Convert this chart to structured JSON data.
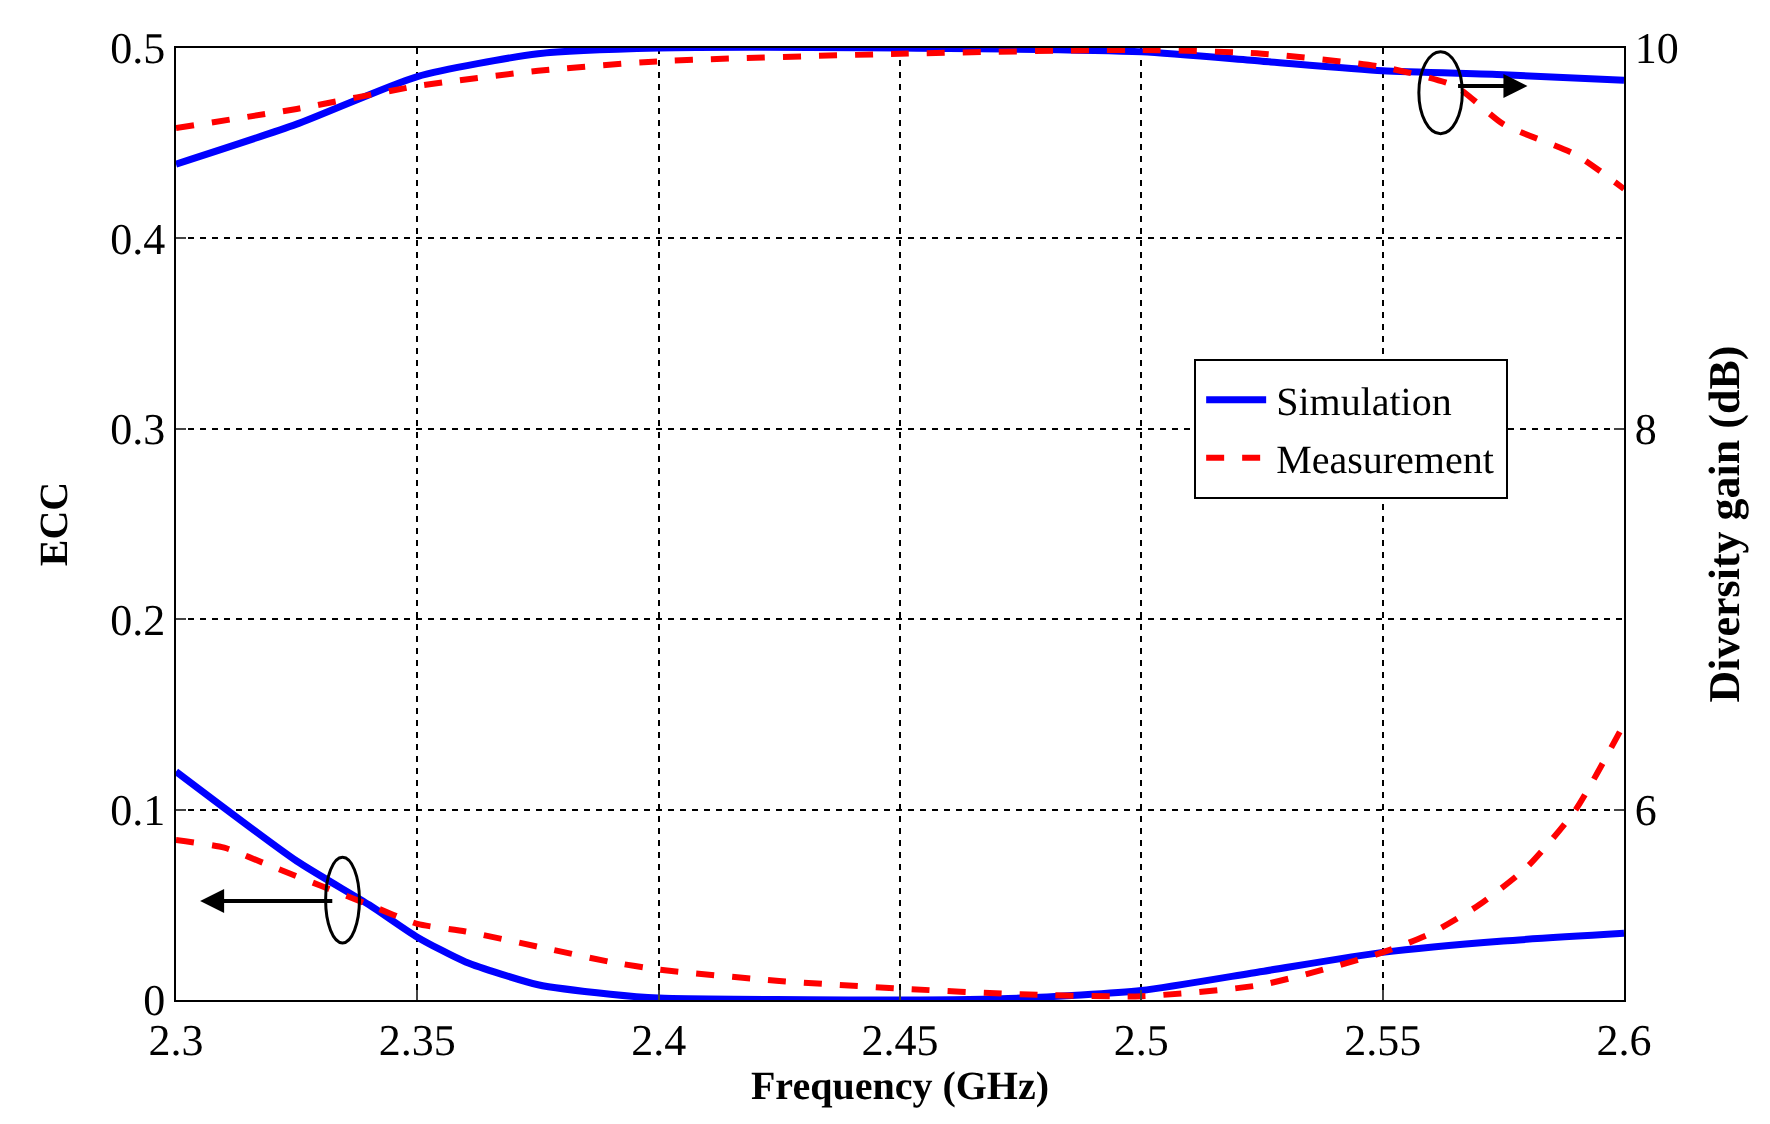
{
  "chart_data": {
    "type": "line",
    "xlabel": "Frequency (GHz)",
    "ylabel": "ECC",
    "y2label": "Diversity gain (dB)",
    "xlim": [
      2.3,
      2.6
    ],
    "xticks": [
      2.3,
      2.35,
      2.4,
      2.45,
      2.5,
      2.55,
      2.6
    ],
    "ylim": [
      0,
      0.5
    ],
    "yticks": [
      0,
      0.1,
      0.2,
      0.3,
      0.4,
      0.5
    ],
    "y2lim": [
      5,
      10
    ],
    "y2ticks": [
      6,
      8,
      10
    ],
    "grid": true,
    "legend": "right",
    "marker": "none",
    "series": [
      {
        "name": "Simulation",
        "color": "#0000ff",
        "line_style": "solid",
        "x": [
          2.3,
          2.325,
          2.34,
          2.35,
          2.36,
          2.375,
          2.39,
          2.4,
          2.45,
          2.475,
          2.5,
          2.525,
          2.55,
          2.575,
          2.6
        ],
        "values": [
          0.12,
          0.073,
          0.05,
          0.033,
          0.02,
          0.008,
          0.003,
          0.001,
          0,
          0.001,
          0.005,
          0.015,
          0.025,
          0.031,
          0.035
        ]
      },
      {
        "name": "Measurement",
        "color": "#ff0000",
        "line_style": "dashed",
        "x": [
          2.3,
          2.31,
          2.32,
          2.33,
          2.34,
          2.35,
          2.36,
          2.375,
          2.39,
          2.4,
          2.425,
          2.45,
          2.475,
          2.5,
          2.525,
          2.55,
          2.56,
          2.57,
          2.58,
          2.59,
          2.6
        ],
        "values": [
          0.084,
          0.08,
          0.07,
          0.06,
          0.05,
          0.04,
          0.036,
          0.028,
          0.02,
          0.016,
          0.01,
          0.006,
          0.003,
          0.002,
          0.008,
          0.025,
          0.035,
          0.05,
          0.07,
          0.1,
          0.145
        ]
      },
      {
        "color": "#0000ff",
        "line_style": "solid",
        "axis": "y2",
        "x": [
          2.3,
          2.325,
          2.35,
          2.375,
          2.4,
          2.45,
          2.5,
          2.525,
          2.55,
          2.575,
          2.6
        ],
        "values": [
          9.39,
          9.6,
          9.85,
          9.97,
          10,
          10,
          9.98,
          9.93,
          9.88,
          9.86,
          9.83
        ]
      },
      {
        "color": "#ff0000",
        "line_style": "dashed",
        "axis": "y2",
        "x": [
          2.3,
          2.325,
          2.35,
          2.375,
          2.4,
          2.45,
          2.5,
          2.525,
          2.55,
          2.565,
          2.575,
          2.59,
          2.6
        ],
        "values": [
          9.58,
          9.68,
          9.8,
          9.88,
          9.93,
          9.97,
          9.99,
          9.97,
          9.9,
          9.8,
          9.6,
          9.44,
          9.26
        ]
      }
    ]
  }
}
